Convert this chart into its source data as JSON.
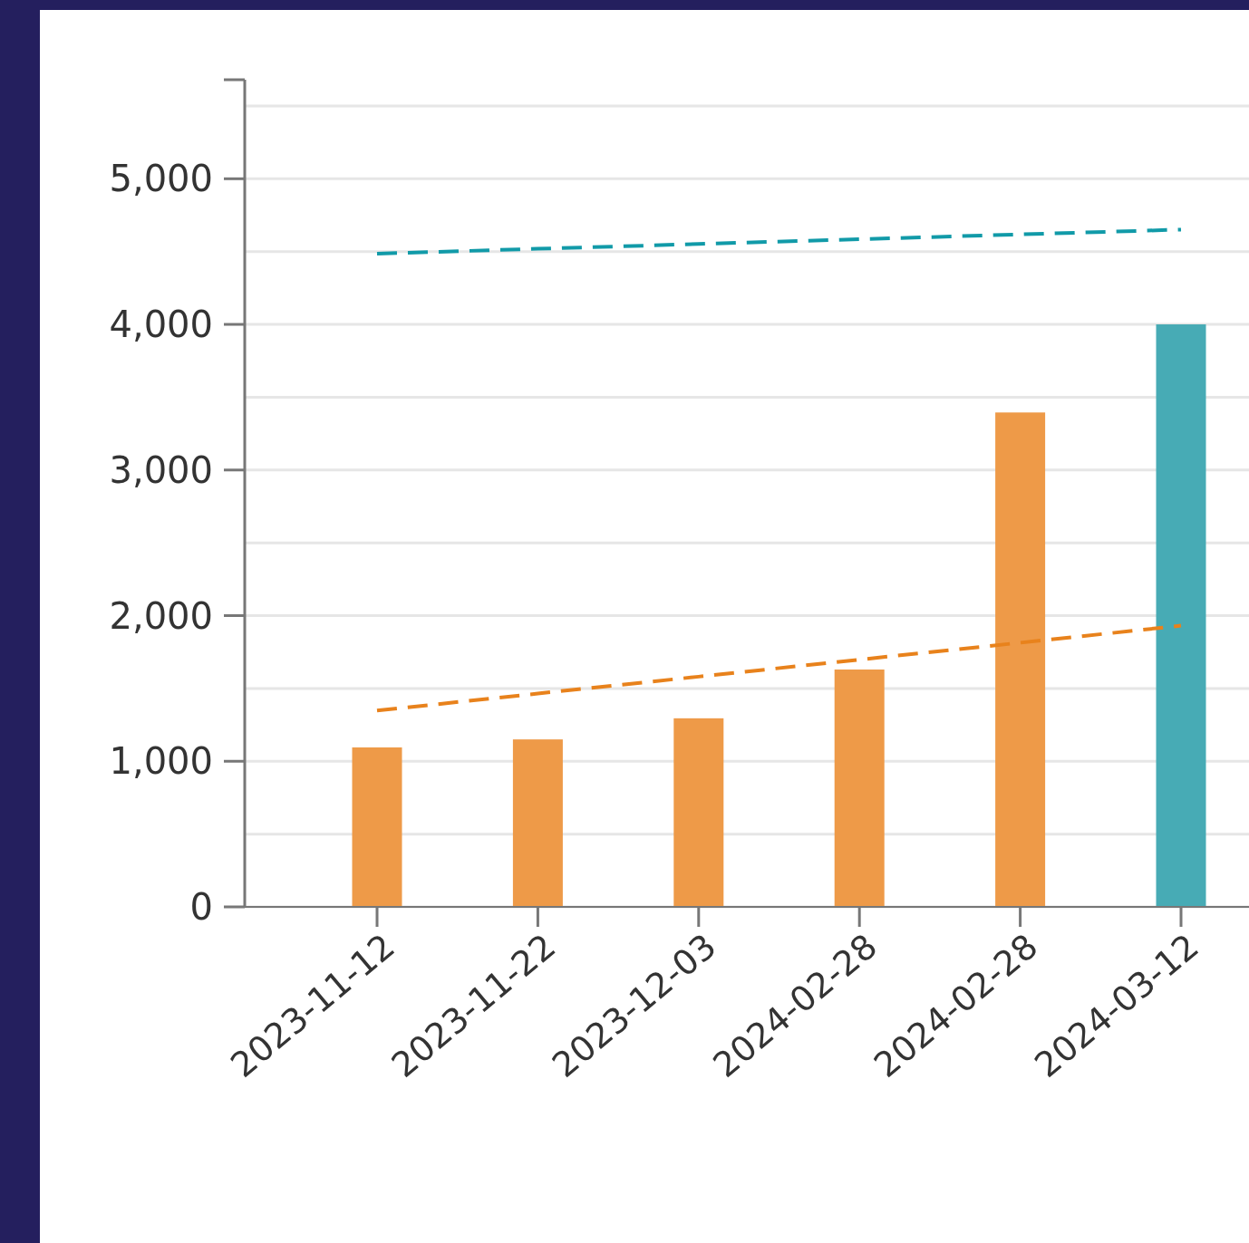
{
  "chart_data": {
    "type": "bar",
    "categories": [
      "2023-11-12",
      "2023-11-22",
      "2023-12-03",
      "2024-02-28",
      "2024-02-28",
      "2024-03-12"
    ],
    "series": [
      {
        "color": "#ee9a48",
        "values": [
          1095,
          1150,
          1295,
          1630,
          3395,
          null
        ]
      },
      {
        "color": "#47abb5",
        "values": [
          null,
          null,
          null,
          null,
          null,
          4000
        ]
      },
      {
        "type": "line",
        "color": "#e8821c",
        "line_style": "dashed",
        "values": [
          1348,
          1465,
          1581,
          1698,
          1814,
          1931
        ]
      },
      {
        "type": "line",
        "color": "#119aa8",
        "line_style": "dashed",
        "values": [
          4486,
          4519,
          4552,
          4585,
          4618,
          4651
        ]
      }
    ],
    "ylim": [
      0,
      5680
    ],
    "yticks": [
      0,
      {
        "value": 500,
        "label": null
      },
      {
        "value": 1000,
        "label": "1,000"
      },
      {
        "value": 1500,
        "label": null
      },
      {
        "value": 2000,
        "label": "2,000"
      },
      {
        "value": 2500,
        "label": null
      },
      {
        "value": 3000,
        "label": "3,000"
      },
      {
        "value": 3500,
        "label": null
      },
      {
        "value": 4000,
        "label": "4,000"
      },
      {
        "value": 4500,
        "label": null
      },
      {
        "value": 5000,
        "label": "5,000"
      },
      {
        "value": 5500,
        "label": null
      }
    ],
    "grid": "y"
  }
}
